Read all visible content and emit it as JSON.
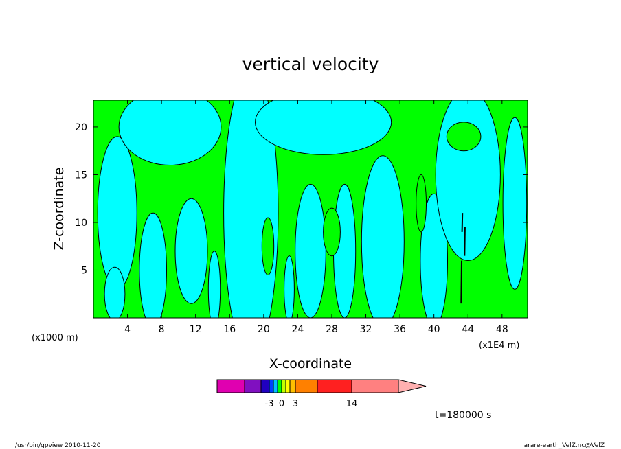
{
  "chart_data": {
    "type": "heatmap",
    "title": "vertical velocity",
    "xlabel": "X-coordinate",
    "ylabel": "Z-coordinate",
    "x_unit": "(x1E4 m)",
    "y_unit": "(x1000 m)",
    "xlim": [
      0,
      51
    ],
    "ylim": [
      0,
      22.8
    ],
    "xticks": [
      4,
      8,
      12,
      16,
      20,
      24,
      28,
      32,
      36,
      40,
      44,
      48
    ],
    "yticks": [
      5,
      10,
      15,
      20
    ],
    "colorbar": {
      "colors": [
        "#e000b0",
        "#8010c0",
        "#2000c0",
        "#0040ff",
        "#00c0ff",
        "#00ff00",
        "#c0ff00",
        "#ffff00",
        "#ffc000",
        "#ff8000",
        "#ff2020",
        "#ff8080",
        "#ffb0b0"
      ],
      "labels": [
        {
          "text": "-3",
          "value": -3
        },
        {
          "text": "0",
          "value": 0
        },
        {
          "text": "3",
          "value": 3
        },
        {
          "text": "14",
          "value": 14
        }
      ]
    },
    "field": {
      "dominant_colors": [
        "#00ffff",
        "#00ff00"
      ],
      "note_colors": {
        "negative_small": "#00ffff",
        "positive_small": "#00ff00",
        "strong_negative": "#000000"
      }
    },
    "time_label": "t=180000 s",
    "footer_left": "/usr/bin/gpview   2010-11-20",
    "footer_right": "arare-earth_VelZ.nc@VelZ"
  }
}
